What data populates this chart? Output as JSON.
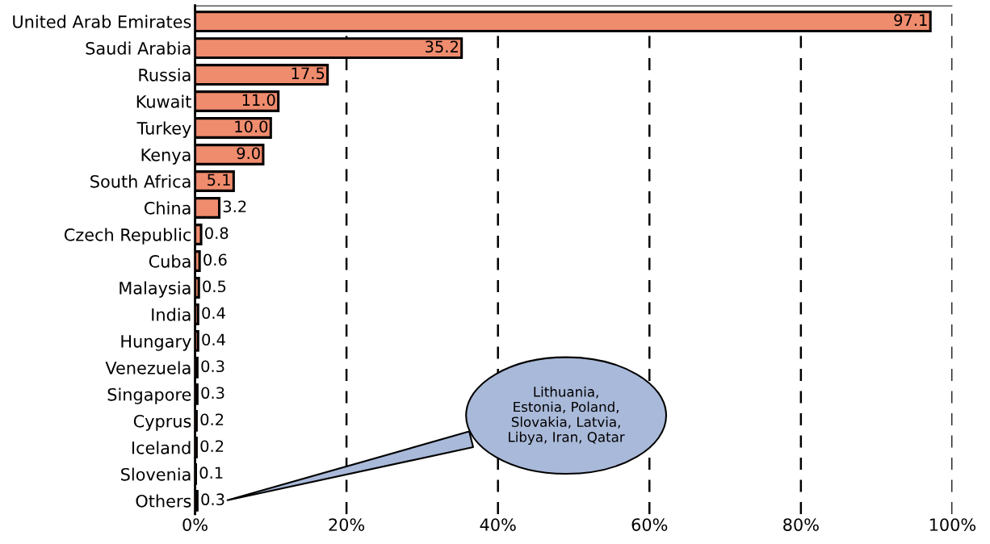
{
  "chart_data": {
    "type": "bar",
    "orientation": "horizontal",
    "categories": [
      "United Arab Emirates",
      "Saudi Arabia",
      "Russia",
      "Kuwait",
      "Turkey",
      "Kenya",
      "South Africa",
      "China",
      "Czech Republic",
      "Cuba",
      "Malaysia",
      "India",
      "Hungary",
      "Venezuela",
      "Singapore",
      "Cyprus",
      "Iceland",
      "Slovenia",
      "Others"
    ],
    "values": [
      97.1,
      35.2,
      17.5,
      11.0,
      10.0,
      9.0,
      5.1,
      3.2,
      0.8,
      0.6,
      0.5,
      0.4,
      0.4,
      0.3,
      0.3,
      0.2,
      0.2,
      0.1,
      0.3
    ],
    "color": "#f08c6e",
    "xlim": [
      0,
      100
    ],
    "xticks": [
      {
        "value": 0,
        "label": "0%"
      },
      {
        "value": 20,
        "label": "20%"
      },
      {
        "value": 40,
        "label": "40%"
      },
      {
        "value": 60,
        "label": "60%"
      },
      {
        "value": 80,
        "label": "80%"
      },
      {
        "value": 100,
        "label": "100%"
      }
    ],
    "grid": "x",
    "value_labels": [
      "97.1",
      "35.2",
      "17.5",
      "11.0",
      "10.0",
      "9.0",
      "5.1",
      "3.2",
      "0.8",
      "0.6",
      "0.5",
      "0.4",
      "0.4",
      "0.3",
      "0.3",
      "0.2",
      "0.2",
      "0.1",
      "0.3"
    ],
    "annotations": [
      "Lithuania,\nEstonia, Poland,\nSlovakia, Latvia,\nLibya, Iran, Qatar"
    ]
  }
}
